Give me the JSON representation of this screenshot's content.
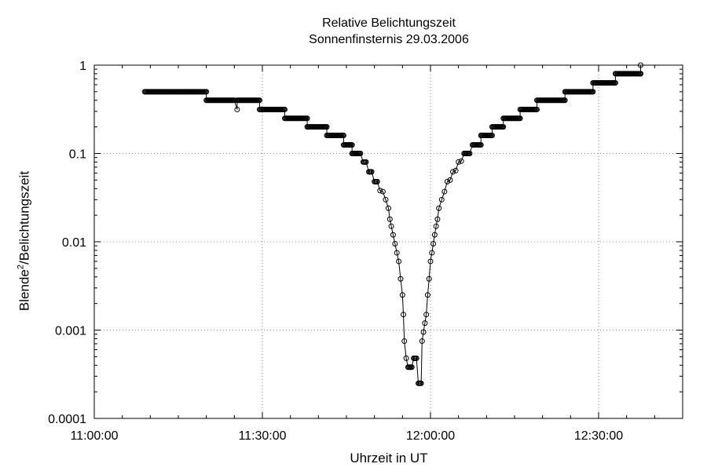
{
  "chart_data": {
    "type": "line",
    "title": "Relative Belichtungszeit",
    "subtitle": "Sonnenfinsternis 29.03.2006",
    "xlabel": "Uhrzeit in UT",
    "ylabel_parts": {
      "base": "Blende",
      "sup": "2",
      "rest": "/Belichtungszeit"
    },
    "x_ticks": [
      "11:00:00",
      "11:30:00",
      "12:00:00",
      "12:30:00"
    ],
    "x_tick_minutes": [
      0,
      30,
      60,
      90
    ],
    "xlim_minutes_after_11_00": [
      0,
      105
    ],
    "y_scale": "log",
    "ylim": [
      0.0001,
      1
    ],
    "y_ticks": [
      1,
      0.1,
      0.01,
      0.001,
      0.0001
    ],
    "y_tick_labels": [
      "1",
      "0.1",
      "0.01",
      "0.001",
      "0.0001"
    ],
    "grid": "dotted",
    "marker": "open-circle",
    "series": [
      {
        "points": [
          [
            "11:09:00",
            0.5
          ],
          [
            "11:20:00",
            0.5
          ],
          [
            "11:20:00",
            0.4
          ],
          [
            "11:25:00",
            0.4
          ],
          [
            "11:25:30",
            0.315
          ],
          [
            "11:25:30",
            0.4
          ],
          [
            "11:29:30",
            0.4
          ],
          [
            "11:29:30",
            0.315
          ],
          [
            "11:34:00",
            0.315
          ],
          [
            "11:34:00",
            0.25
          ],
          [
            "11:38:00",
            0.25
          ],
          [
            "11:38:00",
            0.2
          ],
          [
            "11:41:30",
            0.2
          ],
          [
            "11:41:30",
            0.16
          ],
          [
            "11:44:30",
            0.16
          ],
          [
            "11:44:30",
            0.125
          ],
          [
            "11:46:00",
            0.125
          ],
          [
            "11:46:00",
            0.1
          ],
          [
            "11:47:30",
            0.1
          ],
          [
            "11:48:00",
            0.08
          ],
          [
            "11:48:30",
            0.08
          ],
          [
            "11:49:00",
            0.062
          ],
          [
            "11:49:30",
            0.062
          ],
          [
            "11:50:00",
            0.048
          ],
          [
            "11:50:30",
            0.048
          ],
          [
            "11:51:00",
            0.038
          ],
          [
            "11:51:30",
            0.037
          ],
          [
            "11:52:00",
            0.03
          ],
          [
            "11:52:30",
            0.024
          ],
          [
            "11:52:45",
            0.018
          ],
          [
            "11:53:00",
            0.015
          ],
          [
            "11:53:20",
            0.012
          ],
          [
            "11:53:40",
            0.0095
          ],
          [
            "11:54:00",
            0.0075
          ],
          [
            "11:54:20",
            0.006
          ],
          [
            "11:54:40",
            0.0038
          ],
          [
            "11:55:00",
            0.0025
          ],
          [
            "11:55:10",
            0.0015
          ],
          [
            "11:55:20",
            0.00075
          ],
          [
            "11:55:40",
            0.00048
          ],
          [
            "11:56:00",
            0.00038
          ],
          [
            "11:56:40",
            0.00038
          ],
          [
            "11:57:00",
            0.00048
          ],
          [
            "11:57:30",
            0.00048
          ],
          [
            "11:57:50",
            0.00025
          ],
          [
            "11:58:20",
            0.00025
          ],
          [
            "11:58:30",
            0.00075
          ],
          [
            "11:58:45",
            0.00095
          ],
          [
            "11:59:00",
            0.0012
          ],
          [
            "11:59:15",
            0.0015
          ],
          [
            "11:59:30",
            0.0025
          ],
          [
            "11:59:45",
            0.0038
          ],
          [
            "12:00:00",
            0.006
          ],
          [
            "12:00:15",
            0.0075
          ],
          [
            "12:00:30",
            0.0095
          ],
          [
            "12:00:45",
            0.012
          ],
          [
            "12:01:00",
            0.015
          ],
          [
            "12:01:15",
            0.018
          ],
          [
            "12:01:30",
            0.024
          ],
          [
            "12:02:00",
            0.03
          ],
          [
            "12:02:30",
            0.037
          ],
          [
            "12:03:00",
            0.048
          ],
          [
            "12:03:30",
            0.05
          ],
          [
            "12:04:00",
            0.062
          ],
          [
            "12:04:30",
            0.064
          ],
          [
            "12:05:00",
            0.08
          ],
          [
            "12:05:30",
            0.082
          ],
          [
            "12:06:00",
            0.1
          ],
          [
            "12:07:00",
            0.1
          ],
          [
            "12:07:30",
            0.125
          ],
          [
            "12:09:00",
            0.125
          ],
          [
            "12:09:00",
            0.16
          ],
          [
            "12:11:00",
            0.16
          ],
          [
            "12:11:00",
            0.2
          ],
          [
            "12:13:00",
            0.2
          ],
          [
            "12:13:00",
            0.25
          ],
          [
            "12:16:00",
            0.25
          ],
          [
            "12:16:00",
            0.315
          ],
          [
            "12:19:00",
            0.315
          ],
          [
            "12:19:00",
            0.4
          ],
          [
            "12:24:00",
            0.4
          ],
          [
            "12:24:00",
            0.5
          ],
          [
            "12:29:00",
            0.5
          ],
          [
            "12:29:00",
            0.63
          ],
          [
            "12:33:00",
            0.63
          ],
          [
            "12:33:00",
            0.8
          ],
          [
            "12:37:30",
            0.8
          ],
          [
            "12:37:30",
            1.0
          ],
          [
            "12:37:30",
            0.8
          ]
        ]
      }
    ]
  }
}
